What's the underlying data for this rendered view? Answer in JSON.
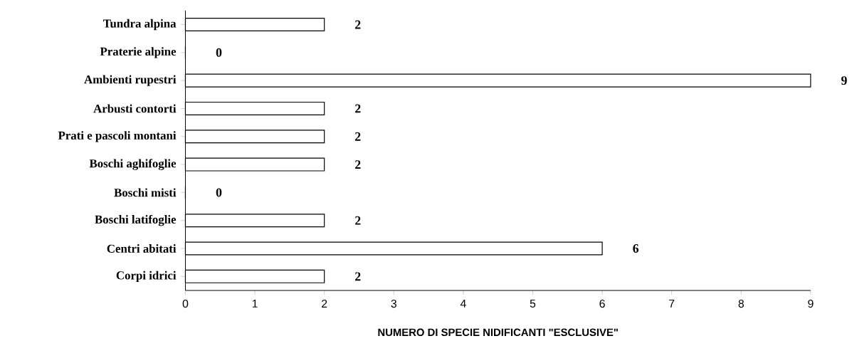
{
  "chart_data": {
    "type": "bar",
    "orientation": "horizontal",
    "categories": [
      "Tundra alpina",
      "Praterie alpine",
      "Ambienti rupestri",
      "Arbusti contorti",
      "Prati e pascoli montani",
      "Boschi aghifoglie",
      "Boschi misti",
      "Boschi latifoglie",
      "Centri abitati",
      "Corpi idrici"
    ],
    "values": [
      2,
      0,
      9,
      2,
      2,
      2,
      0,
      2,
      6,
      2
    ],
    "color": "#ffffff",
    "xlim": [
      0,
      9
    ],
    "xticks": [
      0,
      1,
      2,
      3,
      4,
      5,
      6,
      7,
      8,
      9
    ],
    "xlabel": "NUMERO DI SPECIE NIDIFICANTI \"ESCLUSIVE\"",
    "data_labels": true
  }
}
